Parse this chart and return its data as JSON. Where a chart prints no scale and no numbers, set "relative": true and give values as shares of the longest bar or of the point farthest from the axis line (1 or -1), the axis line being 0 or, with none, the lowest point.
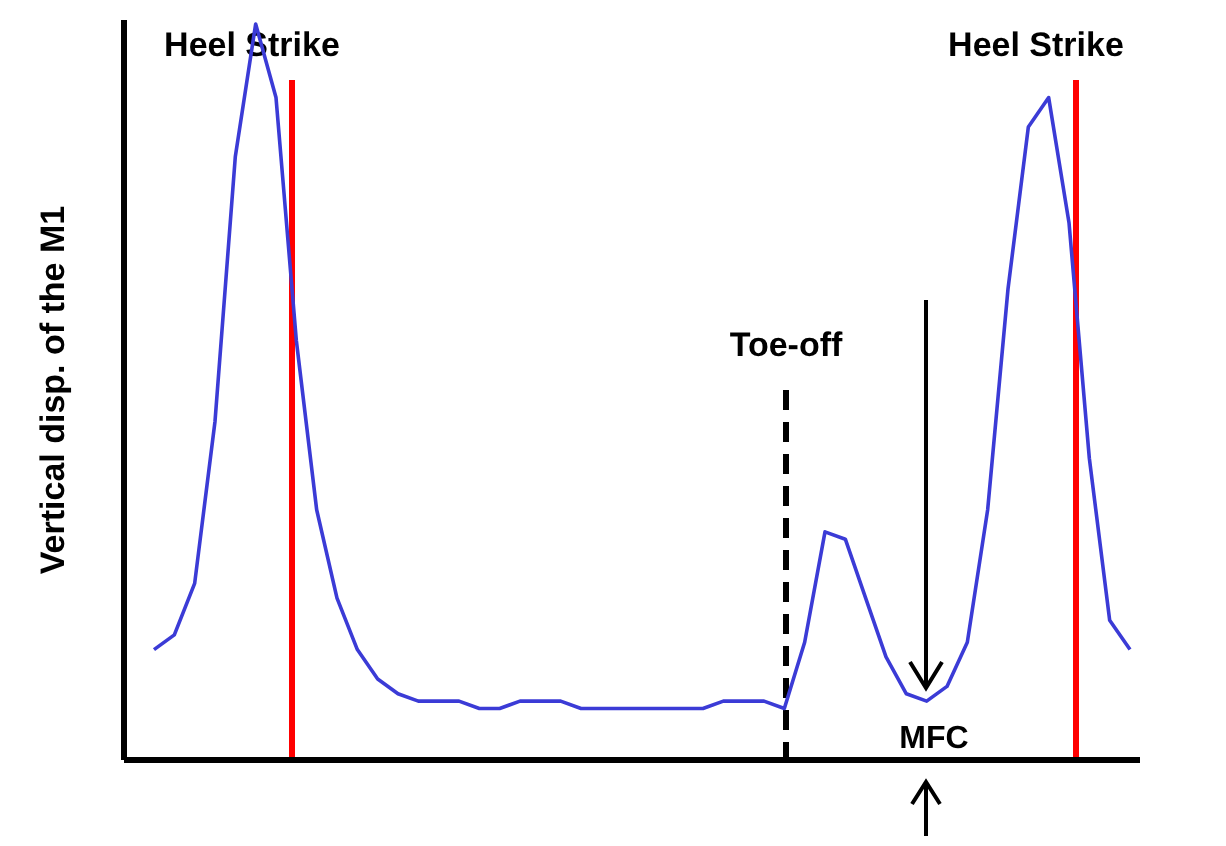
{
  "chart_data": {
    "type": "line",
    "relative": true,
    "ylabel": "Vertical disp. of the M1",
    "categories": [
      null,
      null,
      null,
      null,
      null,
      null,
      null,
      null,
      null,
      null,
      null,
      null,
      null,
      null,
      null,
      null,
      null,
      null,
      null,
      null,
      null,
      null,
      null,
      null,
      null,
      null,
      null,
      null,
      null,
      null,
      null,
      null,
      null,
      null,
      null,
      null,
      null,
      null,
      null,
      null,
      null,
      null,
      null,
      null,
      null,
      null,
      null,
      null,
      null
    ],
    "marker": "none",
    "line_style": "solid",
    "series": [
      {
        "color": "#3b3bd6",
        "values": [
          0.15,
          0.17,
          0.24,
          0.46,
          0.82,
          1.0,
          0.9,
          0.57,
          0.34,
          0.22,
          0.15,
          0.11,
          0.09,
          0.08,
          0.08,
          0.08,
          0.07,
          0.07,
          0.08,
          0.08,
          0.08,
          0.07,
          0.07,
          0.07,
          0.07,
          0.07,
          0.07,
          0.07,
          0.08,
          0.08,
          0.08,
          0.07,
          0.16,
          0.31,
          0.3,
          0.22,
          0.14,
          0.09,
          0.08,
          0.1,
          0.16,
          0.34,
          0.64,
          0.86,
          0.9,
          0.73,
          0.41,
          0.19,
          0.15
        ]
      }
    ],
    "annotations": [
      "Heel Strike",
      "Toe-off",
      "Heel Strike",
      "MFC"
    ]
  }
}
